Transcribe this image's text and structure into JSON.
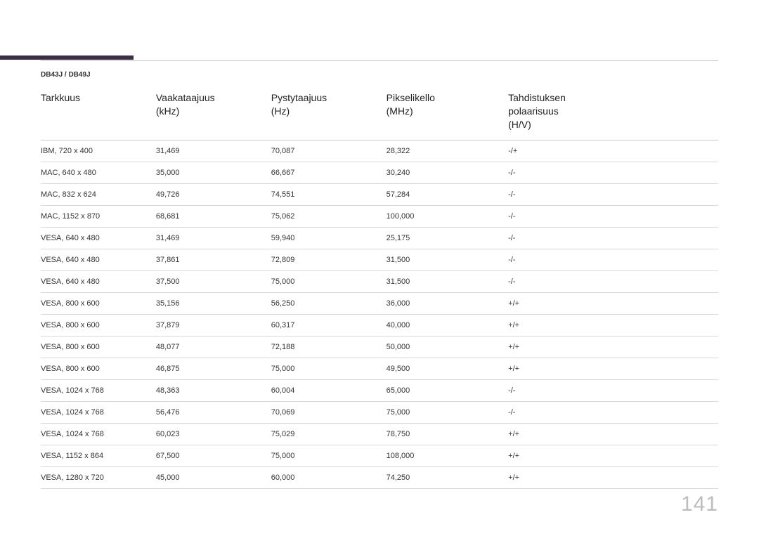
{
  "accent_color": "#3a2f47",
  "model_label": "DB43J / DB49J",
  "page_number": "141",
  "table": {
    "columns": [
      "Tarkkuus",
      "Vaakataajuus\n(kHz)",
      "Pystytaajuus\n(Hz)",
      "Pikselikello\n(MHz)",
      "Tahdistuksen\npolaarisuus\n(H/V)"
    ],
    "rows": [
      [
        "IBM, 720 x 400",
        "31,469",
        "70,087",
        "28,322",
        "-/+"
      ],
      [
        "MAC, 640 x 480",
        "35,000",
        "66,667",
        "30,240",
        "-/-"
      ],
      [
        "MAC, 832 x 624",
        "49,726",
        "74,551",
        "57,284",
        "-/-"
      ],
      [
        "MAC, 1152 x 870",
        "68,681",
        "75,062",
        "100,000",
        "-/-"
      ],
      [
        "VESA, 640 x 480",
        "31,469",
        "59,940",
        "25,175",
        "-/-"
      ],
      [
        "VESA, 640 x 480",
        "37,861",
        "72,809",
        "31,500",
        "-/-"
      ],
      [
        "VESA, 640 x 480",
        "37,500",
        "75,000",
        "31,500",
        "-/-"
      ],
      [
        "VESA, 800 x 600",
        "35,156",
        "56,250",
        "36,000",
        "+/+"
      ],
      [
        "VESA, 800 x 600",
        "37,879",
        "60,317",
        "40,000",
        "+/+"
      ],
      [
        "VESA, 800 x 600",
        "48,077",
        "72,188",
        "50,000",
        "+/+"
      ],
      [
        "VESA, 800 x 600",
        "46,875",
        "75,000",
        "49,500",
        "+/+"
      ],
      [
        "VESA, 1024 x 768",
        "48,363",
        "60,004",
        "65,000",
        "-/-"
      ],
      [
        "VESA, 1024 x 768",
        "56,476",
        "70,069",
        "75,000",
        "-/-"
      ],
      [
        "VESA, 1024 x 768",
        "60,023",
        "75,029",
        "78,750",
        "+/+"
      ],
      [
        "VESA, 1152 x 864",
        "67,500",
        "75,000",
        "108,000",
        "+/+"
      ],
      [
        "VESA, 1280 x 720",
        "45,000",
        "60,000",
        "74,250",
        "+/+"
      ]
    ]
  },
  "style": {
    "header_fontsize": 14,
    "body_fontsize": 11,
    "model_fontsize": 10,
    "pagenum_fontsize": 30,
    "header_color": "#222222",
    "body_color": "#333333",
    "rule_color": "#c8c8c8",
    "row_border_color": "#d8d8d8",
    "pagenum_color": "#bdbdbd",
    "background_color": "#ffffff",
    "col_widths_pct": [
      17,
      17,
      17,
      18,
      31
    ]
  }
}
